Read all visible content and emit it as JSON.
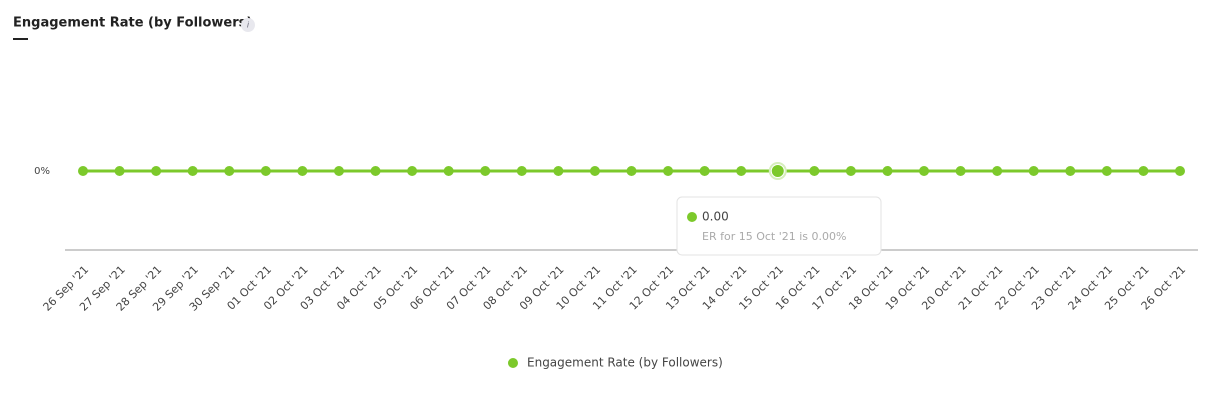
{
  "chart_data": {
    "type": "line",
    "title": "Engagement Rate (by Followers)",
    "info_icon": "i",
    "categories": [
      "26 Sep '21",
      "27 Sep '21",
      "28 Sep '21",
      "29 Sep '21",
      "30 Sep '21",
      "01 Oct '21",
      "02 Oct '21",
      "03 Oct '21",
      "04 Oct '21",
      "05 Oct '21",
      "06 Oct '21",
      "07 Oct '21",
      "08 Oct '21",
      "09 Oct '21",
      "10 Oct '21",
      "11 Oct '21",
      "12 Oct '21",
      "13 Oct '21",
      "14 Oct '21",
      "15 Oct '21",
      "16 Oct '21",
      "17 Oct '21",
      "18 Oct '21",
      "19 Oct '21",
      "20 Oct '21",
      "21 Oct '21",
      "22 Oct '21",
      "23 Oct '21",
      "24 Oct '21",
      "25 Oct '21",
      "26 Oct '21"
    ],
    "series": [
      {
        "name": "Engagement Rate (by Followers)",
        "color": "#7cc92b",
        "values": [
          0,
          0,
          0,
          0,
          0,
          0,
          0,
          0,
          0,
          0,
          0,
          0,
          0,
          0,
          0,
          0,
          0,
          0,
          0,
          0,
          0,
          0,
          0,
          0,
          0,
          0,
          0,
          0,
          0,
          0,
          0
        ]
      }
    ],
    "ylim": [
      -1,
      1
    ],
    "yticks": [
      {
        "value": 0,
        "label": "0%"
      }
    ],
    "grid": false,
    "tooltip": {
      "value": "0.00",
      "text": "ER for 15 Oct '21 is 0.00%"
    }
  }
}
